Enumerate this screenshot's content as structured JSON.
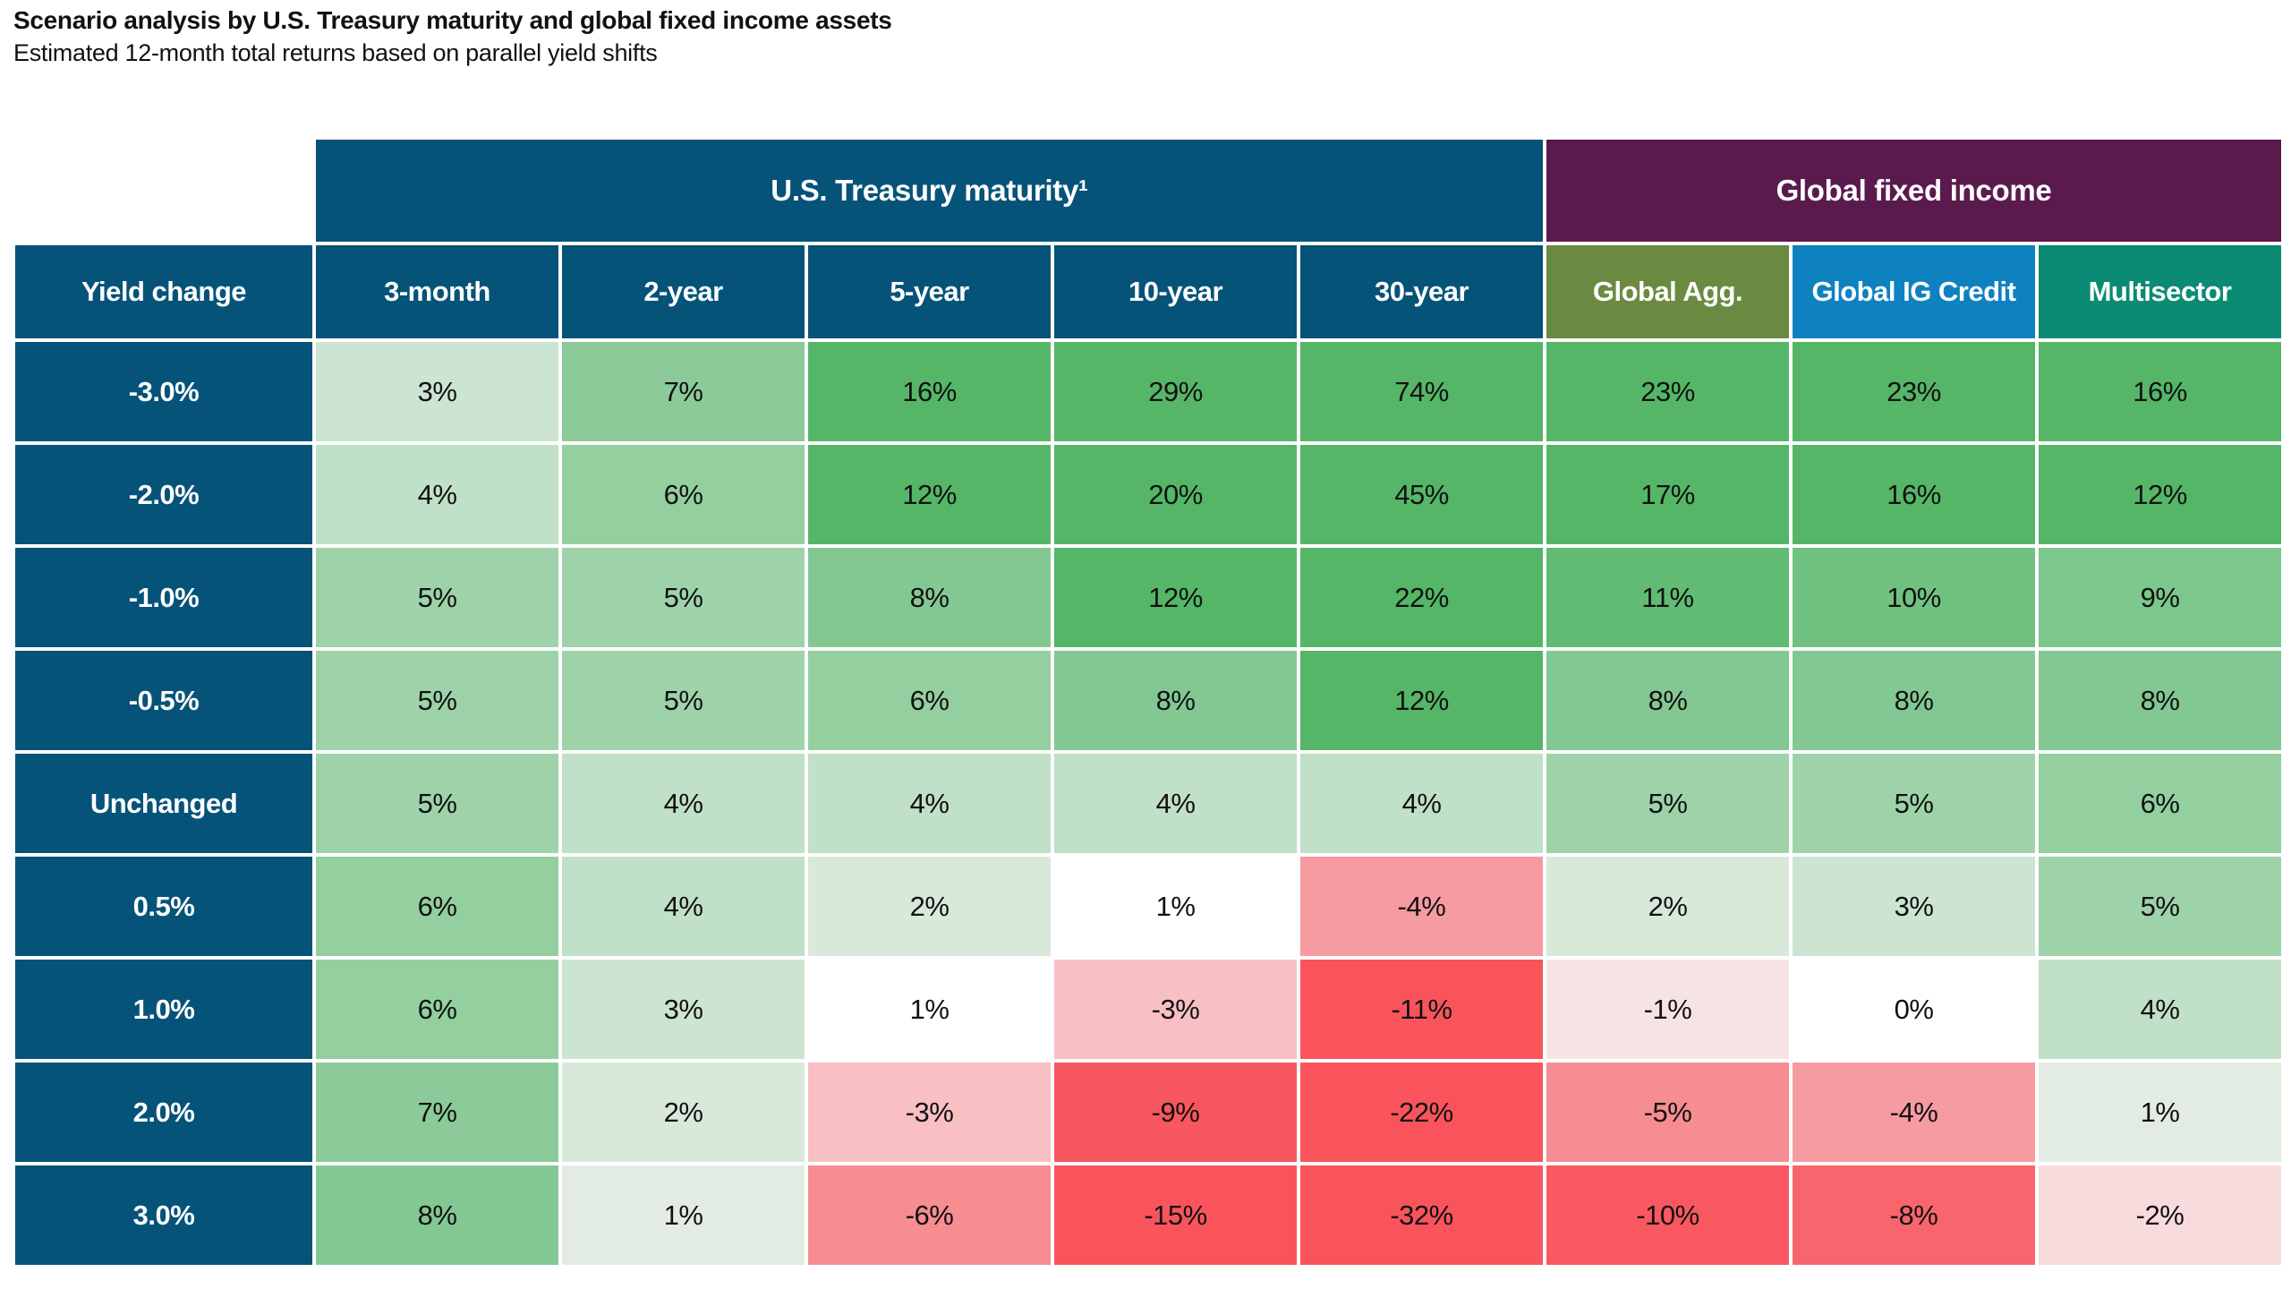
{
  "title": "Scenario analysis by U.S. Treasury maturity and global fixed income assets",
  "subtitle": "Estimated 12-month total returns based on parallel yield shifts",
  "colors": {
    "header_blue": "#065379",
    "group_purple": "#5b1a4e",
    "olive": "#6a8a42",
    "ig_blue": "#0e81c1",
    "teal": "#0b8a74",
    "green_max": "#55b668",
    "red_max": "#f9545c"
  },
  "table": {
    "corner_label": "Yield change",
    "header_color": "#065379",
    "groups": [
      {
        "label": "U.S. Treasury maturity¹",
        "span": 5,
        "color": "#065379"
      },
      {
        "label": "Global fixed income",
        "span": 3,
        "color": "#5b1a4e"
      }
    ],
    "columns": [
      {
        "label": "3-month",
        "color": "#065379"
      },
      {
        "label": "2-year",
        "color": "#065379"
      },
      {
        "label": "5-year",
        "color": "#065379"
      },
      {
        "label": "10-year",
        "color": "#065379"
      },
      {
        "label": "30-year",
        "color": "#065379"
      },
      {
        "label": "Global Agg.",
        "color": "#6a8a42"
      },
      {
        "label": "Global IG Credit",
        "color": "#0e81c1"
      },
      {
        "label": "Multisector",
        "color": "#0b8a74"
      }
    ],
    "rows": [
      {
        "label": "-3.0%",
        "values": [
          "3%",
          "7%",
          "16%",
          "29%",
          "74%",
          "23%",
          "23%",
          "16%"
        ],
        "colors": [
          "#cce5d2",
          "#8ccb99",
          "#55b668",
          "#55b668",
          "#55b668",
          "#55b668",
          "#55b668",
          "#55b668"
        ]
      },
      {
        "label": "-2.0%",
        "values": [
          "4%",
          "6%",
          "12%",
          "20%",
          "45%",
          "17%",
          "16%",
          "12%"
        ],
        "colors": [
          "#c0e0c7",
          "#94cfa0",
          "#55b668",
          "#55b668",
          "#55b668",
          "#55b668",
          "#55b668",
          "#55b668"
        ]
      },
      {
        "label": "-1.0%",
        "values": [
          "5%",
          "5%",
          "8%",
          "12%",
          "22%",
          "11%",
          "10%",
          "9%"
        ],
        "colors": [
          "#9ed3a9",
          "#9ed3a9",
          "#83c892",
          "#55b668",
          "#55b668",
          "#61bb73",
          "#71c281",
          "#7cc78b"
        ]
      },
      {
        "label": "-0.5%",
        "values": [
          "5%",
          "5%",
          "6%",
          "8%",
          "12%",
          "8%",
          "8%",
          "8%"
        ],
        "colors": [
          "#9ed3a9",
          "#9ed3a9",
          "#94cfa0",
          "#83c892",
          "#55b668",
          "#83c892",
          "#83c892",
          "#83c892"
        ]
      },
      {
        "label": "Unchanged",
        "values": [
          "5%",
          "4%",
          "4%",
          "4%",
          "4%",
          "5%",
          "5%",
          "6%"
        ],
        "colors": [
          "#9ed3a9",
          "#c0e0c7",
          "#c0e0c7",
          "#c0e0c7",
          "#c0e0c7",
          "#9ed3a9",
          "#9ed3a9",
          "#94cfa0"
        ]
      },
      {
        "label": "0.5%",
        "values": [
          "6%",
          "4%",
          "2%",
          "1%",
          "-4%",
          "2%",
          "3%",
          "5%"
        ],
        "colors": [
          "#94cfa0",
          "#c0e0c7",
          "#d8e9da",
          "#ffffff",
          "#f69ba0",
          "#d8e9da",
          "#cce5d2",
          "#9ed3a9"
        ]
      },
      {
        "label": "1.0%",
        "values": [
          "6%",
          "3%",
          "1%",
          "-3%",
          "-11%",
          "-1%",
          "0%",
          "4%"
        ],
        "colors": [
          "#94cfa0",
          "#cce5d2",
          "#ffffff",
          "#f8c0c3",
          "#f9545c",
          "#f6e4e5",
          "#ffffff",
          "#c0e0c7"
        ]
      },
      {
        "label": "2.0%",
        "values": [
          "7%",
          "2%",
          "-3%",
          "-9%",
          "-22%",
          "-5%",
          "-4%",
          "1%"
        ],
        "colors": [
          "#8ccb99",
          "#d8e9da",
          "#f8c0c3",
          "#f9575f",
          "#f9545c",
          "#f68d93",
          "#f69ba0",
          "#e2ece3"
        ]
      },
      {
        "label": "3.0%",
        "values": [
          "8%",
          "1%",
          "-6%",
          "-15%",
          "-32%",
          "-10%",
          "-8%",
          "-2%"
        ],
        "colors": [
          "#83c892",
          "#e2ece3",
          "#f68d91",
          "#f9545c",
          "#f9545c",
          "#f95860",
          "#f9656d",
          "#f8dbdd"
        ]
      }
    ]
  },
  "chart_data": {
    "type": "heatmap",
    "title": "Scenario analysis by U.S. Treasury maturity and global fixed income assets",
    "subtitle": "Estimated 12-month total returns based on parallel yield shifts",
    "row_axis_label": "Yield change",
    "column_groups": [
      {
        "label": "U.S. Treasury maturity¹",
        "columns": [
          "3-month",
          "2-year",
          "5-year",
          "10-year",
          "30-year"
        ]
      },
      {
        "label": "Global fixed income",
        "columns": [
          "Global Agg.",
          "Global IG Credit",
          "Multisector"
        ]
      }
    ],
    "columns": [
      "3-month",
      "2-year",
      "5-year",
      "10-year",
      "30-year",
      "Global Agg.",
      "Global IG Credit",
      "Multisector"
    ],
    "rows": [
      "-3.0%",
      "-2.0%",
      "-1.0%",
      "-0.5%",
      "Unchanged",
      "0.5%",
      "1.0%",
      "2.0%",
      "3.0%"
    ],
    "values_pct": [
      [
        3,
        7,
        16,
        29,
        74,
        23,
        23,
        16
      ],
      [
        4,
        6,
        12,
        20,
        45,
        17,
        16,
        12
      ],
      [
        5,
        5,
        8,
        12,
        22,
        11,
        10,
        9
      ],
      [
        5,
        5,
        6,
        8,
        12,
        8,
        8,
        8
      ],
      [
        5,
        4,
        4,
        4,
        4,
        5,
        5,
        6
      ],
      [
        6,
        4,
        2,
        1,
        -4,
        2,
        3,
        5
      ],
      [
        6,
        3,
        1,
        -3,
        -11,
        -1,
        0,
        4
      ],
      [
        7,
        2,
        -3,
        -9,
        -22,
        -5,
        -4,
        1
      ],
      [
        8,
        1,
        -6,
        -15,
        -32,
        -10,
        -8,
        -2
      ]
    ],
    "color_scale": "diverging: positive returns shade white to green (saturates near +12%), negative returns shade white to red (saturates near -11%)"
  }
}
